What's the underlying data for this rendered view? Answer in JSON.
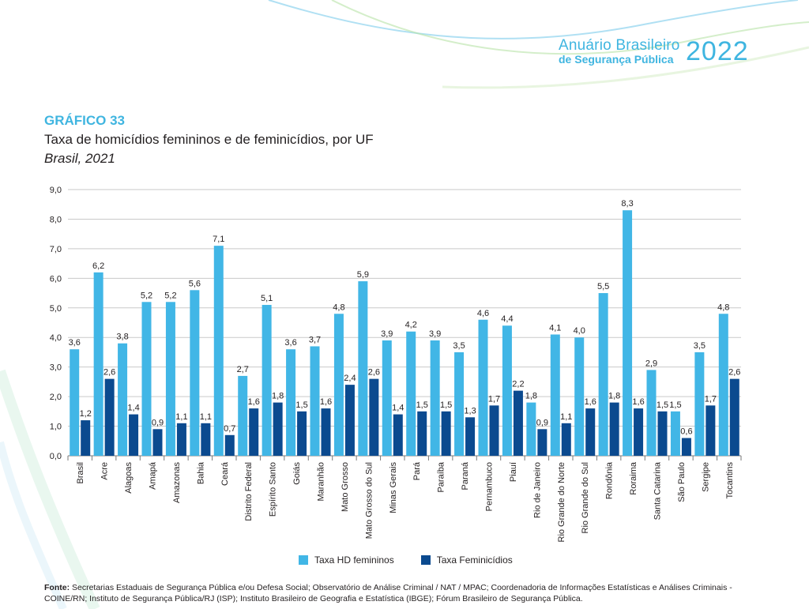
{
  "header": {
    "brand_line1": "Anuário Brasileiro",
    "brand_line2": "de Segurança Pública",
    "brand_year": "2022"
  },
  "chart_label": "GRÁFICO 33",
  "chart_title": "Taxa de homicídios femininos e de feminicídios, por UF",
  "chart_subtitle": "Brasil, 2021",
  "colors": {
    "accent": "#3fb5e0",
    "series1": "#41b6e6",
    "series2": "#0b4a8f",
    "grid": "#c9c9c9"
  },
  "chart_data": {
    "type": "bar",
    "title": "Taxa de homicídios femininos e de feminicídios, por UF",
    "subtitle": "Brasil, 2021",
    "ylim": [
      0,
      9
    ],
    "yticks": [
      "0,0",
      "1,0",
      "2,0",
      "3,0",
      "4,0",
      "5,0",
      "6,0",
      "7,0",
      "8,0",
      "9,0"
    ],
    "categories": [
      "Brasil",
      "Acre",
      "Alagoas",
      "Amapá",
      "Amazonas",
      "Bahia",
      "Ceará",
      "Distrito Federal",
      "Espírito Santo",
      "Goiás",
      "Maranhão",
      "Mato Grosso",
      "Mato Grosso do Sul",
      "Minas Gerais",
      "Pará",
      "Paraíba",
      "Paraná",
      "Pernambuco",
      "Piauí",
      "Rio de Janeiro",
      "Rio Grande do Norte",
      "Rio Grande do Sul",
      "Rondônia",
      "Roraima",
      "Santa Catarina",
      "São Paulo",
      "Sergipe",
      "Tocantins"
    ],
    "series": [
      {
        "name": "Taxa HD femininos",
        "values": [
          3.6,
          6.2,
          3.8,
          5.2,
          5.2,
          5.6,
          7.1,
          2.7,
          5.1,
          3.6,
          3.7,
          4.8,
          5.9,
          3.9,
          4.2,
          3.9,
          3.5,
          4.6,
          4.4,
          1.8,
          4.1,
          4.0,
          5.5,
          8.3,
          2.9,
          1.5,
          3.5,
          4.8
        ],
        "labels": [
          "3,6",
          "6,2",
          "3,8",
          "5,2",
          "5,2",
          "5,6",
          "7,1",
          "2,7",
          "5,1",
          "3,6",
          "3,7",
          "4,8",
          "5,9",
          "3,9",
          "4,2",
          "3,9",
          "3,5",
          "4,6",
          "4,4",
          "1,8",
          "4,1",
          "4,0",
          "5,5",
          "8,3",
          "2,9",
          "1,5",
          "3,5",
          "4,8"
        ]
      },
      {
        "name": "Taxa Feminicídios",
        "values": [
          1.2,
          2.6,
          1.4,
          0.9,
          1.1,
          1.1,
          0.7,
          1.6,
          1.8,
          1.5,
          1.6,
          2.4,
          2.6,
          1.4,
          1.5,
          1.5,
          1.3,
          1.7,
          2.2,
          0.9,
          1.1,
          1.6,
          1.8,
          1.6,
          1.5,
          0.6,
          1.7,
          2.6
        ],
        "labels": [
          "1,2",
          "2,6",
          "1,4",
          "0,9",
          "1,1",
          "1,1",
          "0,7",
          "1,6",
          "1,8",
          "1,5",
          "1,6",
          "2,4",
          "2,6",
          "1,4",
          "1,5",
          "1,5",
          "1,3",
          "1,7",
          "2,2",
          "0,9",
          "1,1",
          "1,6",
          "1,8",
          "1,6",
          "1,5",
          "0,6",
          "1,7",
          "2,6"
        ]
      }
    ],
    "legend": [
      "Taxa HD femininos",
      "Taxa Feminicídios"
    ],
    "grid": true
  },
  "source": {
    "label": "Fonte:",
    "text": "Secretarias Estaduais de Segurança Pública e/ou Defesa Social; Observatório de Análise Criminal / NAT / MPAC; Coordenadoria de Informações Estatísticas e Análises Criminais - COINE/RN; Instituto de Segurança Pública/RJ (ISP); Instituto Brasileiro de Geografia e Estatística (IBGE); Fórum Brasileiro de Segurança Pública."
  }
}
